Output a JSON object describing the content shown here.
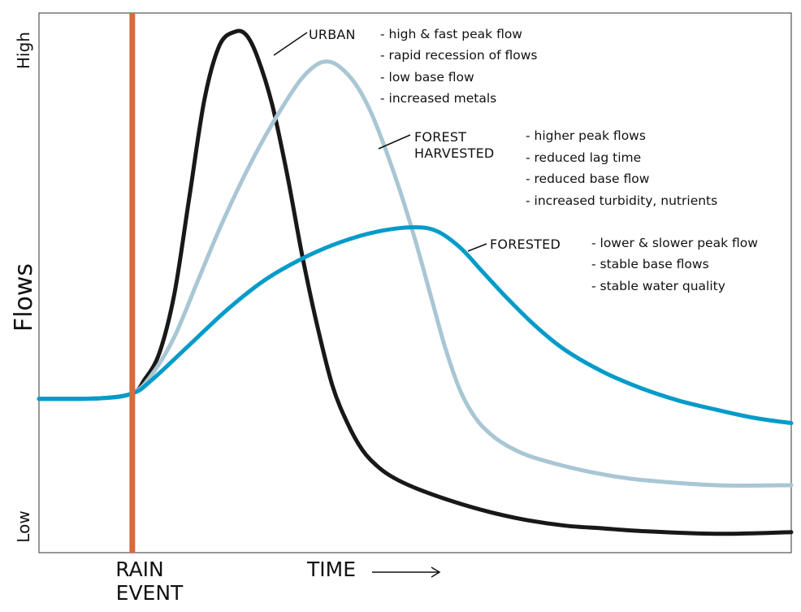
{
  "chart_data": {
    "type": "line",
    "title": "",
    "xlabel": "TIME",
    "ylabel": "Flows",
    "y_ticks": {
      "high": "High",
      "low": "Low"
    },
    "event": {
      "label_line1": "RAIN",
      "label_line2": "EVENT",
      "color": "#d9693a"
    },
    "xlim": [
      0,
      100
    ],
    "ylim": [
      0,
      100
    ],
    "series": [
      {
        "name": "URBAN",
        "color": "#1a1718",
        "x": [
          0,
          8,
          12.4,
          14,
          16,
          18,
          20,
          22,
          24,
          26,
          27.5,
          29,
          31,
          33,
          35,
          37,
          39,
          41,
          43,
          45,
          47,
          50,
          55,
          60,
          65,
          70,
          75,
          80,
          90,
          100
        ],
        "y": [
          28.5,
          28.6,
          29.5,
          32,
          37,
          48,
          66,
          84,
          94,
          96.5,
          96,
          92,
          83,
          70,
          55,
          42,
          31,
          24,
          19,
          16,
          14,
          12,
          9.5,
          7.5,
          6,
          5,
          4.5,
          4,
          3.5,
          3.8
        ],
        "bullets": [
          "- high & fast peak flow",
          "- rapid recession of flows",
          "- low base flow",
          "- increased metals"
        ]
      },
      {
        "name_line1": "FOREST",
        "name_line2": "HARVESTED",
        "color": "#a9c6d4",
        "x": [
          0,
          8,
          12.4,
          15,
          18,
          21,
          24,
          27,
          30,
          33,
          35,
          37,
          38.5,
          40,
          42,
          44,
          46,
          48,
          50,
          52,
          54,
          56,
          58,
          60,
          62,
          65,
          70,
          75,
          80,
          90,
          100
        ],
        "y": [
          28.5,
          28.6,
          29.5,
          33,
          40,
          50,
          60,
          69,
          77,
          84,
          88,
          90.5,
          91,
          90,
          87,
          82,
          75,
          67,
          58,
          48,
          38,
          30,
          25,
          22,
          20,
          18,
          16,
          14.5,
          13.5,
          12.5,
          12.5
        ],
        "bullets": [
          "- higher peak flows",
          "- reduced lag time",
          "- reduced base flow",
          "- increased turbidity, nutrients"
        ]
      },
      {
        "name": "FORESTED",
        "color": "#059bc9",
        "x": [
          0,
          8,
          12.4,
          15,
          20,
          25,
          30,
          35,
          40,
          45,
          50,
          53,
          56,
          59,
          62,
          66,
          70,
          75,
          80,
          85,
          90,
          95,
          100
        ],
        "y": [
          28.5,
          28.6,
          29.5,
          32,
          38.5,
          45,
          50.5,
          54.5,
          57.5,
          59.5,
          60.3,
          59.5,
          56.5,
          52,
          47.5,
          42,
          37.5,
          33.5,
          30.5,
          28.2,
          26.5,
          25,
          24
        ],
        "bullets": [
          "- lower & slower peak flow",
          "- stable base flows",
          "- stable water quality"
        ]
      }
    ],
    "event_x": 12.4
  }
}
